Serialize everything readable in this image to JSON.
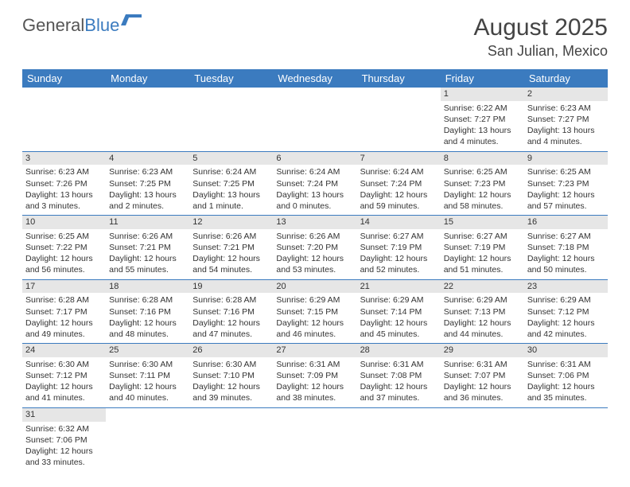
{
  "logo": {
    "part1": "General",
    "part2": "Blue"
  },
  "title": "August 2025",
  "location": "San Julian, Mexico",
  "colors": {
    "header_bg": "#3b7bbf",
    "header_fg": "#ffffff",
    "daynum_bg": "#e6e6e6",
    "border": "#3b7bbf",
    "text": "#333333"
  },
  "weekdays": [
    "Sunday",
    "Monday",
    "Tuesday",
    "Wednesday",
    "Thursday",
    "Friday",
    "Saturday"
  ],
  "weeks": [
    [
      null,
      null,
      null,
      null,
      null,
      {
        "n": "1",
        "sr": "Sunrise: 6:22 AM",
        "ss": "Sunset: 7:27 PM",
        "dl": "Daylight: 13 hours and 4 minutes."
      },
      {
        "n": "2",
        "sr": "Sunrise: 6:23 AM",
        "ss": "Sunset: 7:27 PM",
        "dl": "Daylight: 13 hours and 4 minutes."
      }
    ],
    [
      {
        "n": "3",
        "sr": "Sunrise: 6:23 AM",
        "ss": "Sunset: 7:26 PM",
        "dl": "Daylight: 13 hours and 3 minutes."
      },
      {
        "n": "4",
        "sr": "Sunrise: 6:23 AM",
        "ss": "Sunset: 7:25 PM",
        "dl": "Daylight: 13 hours and 2 minutes."
      },
      {
        "n": "5",
        "sr": "Sunrise: 6:24 AM",
        "ss": "Sunset: 7:25 PM",
        "dl": "Daylight: 13 hours and 1 minute."
      },
      {
        "n": "6",
        "sr": "Sunrise: 6:24 AM",
        "ss": "Sunset: 7:24 PM",
        "dl": "Daylight: 13 hours and 0 minutes."
      },
      {
        "n": "7",
        "sr": "Sunrise: 6:24 AM",
        "ss": "Sunset: 7:24 PM",
        "dl": "Daylight: 12 hours and 59 minutes."
      },
      {
        "n": "8",
        "sr": "Sunrise: 6:25 AM",
        "ss": "Sunset: 7:23 PM",
        "dl": "Daylight: 12 hours and 58 minutes."
      },
      {
        "n": "9",
        "sr": "Sunrise: 6:25 AM",
        "ss": "Sunset: 7:23 PM",
        "dl": "Daylight: 12 hours and 57 minutes."
      }
    ],
    [
      {
        "n": "10",
        "sr": "Sunrise: 6:25 AM",
        "ss": "Sunset: 7:22 PM",
        "dl": "Daylight: 12 hours and 56 minutes."
      },
      {
        "n": "11",
        "sr": "Sunrise: 6:26 AM",
        "ss": "Sunset: 7:21 PM",
        "dl": "Daylight: 12 hours and 55 minutes."
      },
      {
        "n": "12",
        "sr": "Sunrise: 6:26 AM",
        "ss": "Sunset: 7:21 PM",
        "dl": "Daylight: 12 hours and 54 minutes."
      },
      {
        "n": "13",
        "sr": "Sunrise: 6:26 AM",
        "ss": "Sunset: 7:20 PM",
        "dl": "Daylight: 12 hours and 53 minutes."
      },
      {
        "n": "14",
        "sr": "Sunrise: 6:27 AM",
        "ss": "Sunset: 7:19 PM",
        "dl": "Daylight: 12 hours and 52 minutes."
      },
      {
        "n": "15",
        "sr": "Sunrise: 6:27 AM",
        "ss": "Sunset: 7:19 PM",
        "dl": "Daylight: 12 hours and 51 minutes."
      },
      {
        "n": "16",
        "sr": "Sunrise: 6:27 AM",
        "ss": "Sunset: 7:18 PM",
        "dl": "Daylight: 12 hours and 50 minutes."
      }
    ],
    [
      {
        "n": "17",
        "sr": "Sunrise: 6:28 AM",
        "ss": "Sunset: 7:17 PM",
        "dl": "Daylight: 12 hours and 49 minutes."
      },
      {
        "n": "18",
        "sr": "Sunrise: 6:28 AM",
        "ss": "Sunset: 7:16 PM",
        "dl": "Daylight: 12 hours and 48 minutes."
      },
      {
        "n": "19",
        "sr": "Sunrise: 6:28 AM",
        "ss": "Sunset: 7:16 PM",
        "dl": "Daylight: 12 hours and 47 minutes."
      },
      {
        "n": "20",
        "sr": "Sunrise: 6:29 AM",
        "ss": "Sunset: 7:15 PM",
        "dl": "Daylight: 12 hours and 46 minutes."
      },
      {
        "n": "21",
        "sr": "Sunrise: 6:29 AM",
        "ss": "Sunset: 7:14 PM",
        "dl": "Daylight: 12 hours and 45 minutes."
      },
      {
        "n": "22",
        "sr": "Sunrise: 6:29 AM",
        "ss": "Sunset: 7:13 PM",
        "dl": "Daylight: 12 hours and 44 minutes."
      },
      {
        "n": "23",
        "sr": "Sunrise: 6:29 AM",
        "ss": "Sunset: 7:12 PM",
        "dl": "Daylight: 12 hours and 42 minutes."
      }
    ],
    [
      {
        "n": "24",
        "sr": "Sunrise: 6:30 AM",
        "ss": "Sunset: 7:12 PM",
        "dl": "Daylight: 12 hours and 41 minutes."
      },
      {
        "n": "25",
        "sr": "Sunrise: 6:30 AM",
        "ss": "Sunset: 7:11 PM",
        "dl": "Daylight: 12 hours and 40 minutes."
      },
      {
        "n": "26",
        "sr": "Sunrise: 6:30 AM",
        "ss": "Sunset: 7:10 PM",
        "dl": "Daylight: 12 hours and 39 minutes."
      },
      {
        "n": "27",
        "sr": "Sunrise: 6:31 AM",
        "ss": "Sunset: 7:09 PM",
        "dl": "Daylight: 12 hours and 38 minutes."
      },
      {
        "n": "28",
        "sr": "Sunrise: 6:31 AM",
        "ss": "Sunset: 7:08 PM",
        "dl": "Daylight: 12 hours and 37 minutes."
      },
      {
        "n": "29",
        "sr": "Sunrise: 6:31 AM",
        "ss": "Sunset: 7:07 PM",
        "dl": "Daylight: 12 hours and 36 minutes."
      },
      {
        "n": "30",
        "sr": "Sunrise: 6:31 AM",
        "ss": "Sunset: 7:06 PM",
        "dl": "Daylight: 12 hours and 35 minutes."
      }
    ],
    [
      {
        "n": "31",
        "sr": "Sunrise: 6:32 AM",
        "ss": "Sunset: 7:06 PM",
        "dl": "Daylight: 12 hours and 33 minutes."
      },
      null,
      null,
      null,
      null,
      null,
      null
    ]
  ]
}
